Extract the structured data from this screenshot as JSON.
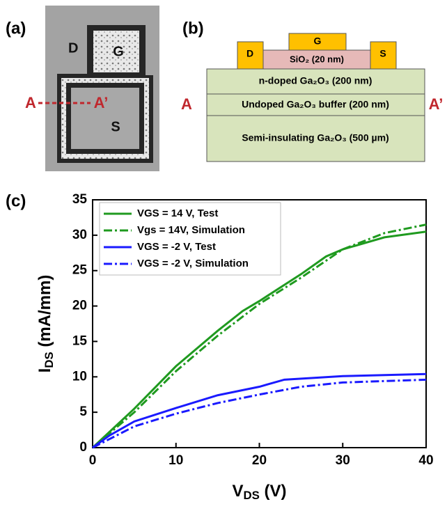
{
  "panel_a": {
    "label": "(a)",
    "drain": "D",
    "gate": "G",
    "source": "S",
    "cut_start": "A",
    "cut_end": "A’"
  },
  "panel_b": {
    "label": "(b)",
    "drain": "D",
    "gate": "G",
    "source": "S",
    "oxide": "SiO₂ (20 nm)",
    "layers": [
      "n-doped Ga₂O₃ (200 nm)",
      "Undoped Ga₂O₃ buffer (200 nm)",
      "Semi-insulating Ga₂O₃ (500 µm)"
    ],
    "cut_start": "A",
    "cut_end": "A’"
  },
  "chart_data": {
    "type": "line",
    "panel_label": "(c)",
    "xlabel": [
      "V",
      "DS",
      " (V)"
    ],
    "ylabel": [
      "I",
      "DS",
      " (mA/mm)"
    ],
    "xlim": [
      0,
      40
    ],
    "ylim": [
      0,
      35
    ],
    "xticks": [
      0,
      10,
      20,
      30,
      40
    ],
    "yticks": [
      0,
      5,
      10,
      15,
      20,
      25,
      30,
      35
    ],
    "legend": "upper left",
    "series": [
      {
        "name": "VGS = 14 V, Test",
        "color": "#1f9a1f",
        "dash": "solid",
        "x": [
          0,
          5,
          10,
          15,
          18,
          20,
          25,
          28,
          30,
          35,
          40
        ],
        "values": [
          0,
          5.5,
          11.5,
          16.5,
          19.3,
          20.7,
          24.5,
          27,
          28,
          29.7,
          30.5
        ]
      },
      {
        "name": "Vgs = 14V, Simulation",
        "color": "#1f9a1f",
        "dash": "dashdot",
        "x": [
          0,
          5,
          10,
          15,
          20,
          25,
          30,
          35,
          40
        ],
        "values": [
          0,
          5,
          10.8,
          15.8,
          20.3,
          24,
          28,
          30.3,
          31.5
        ]
      },
      {
        "name": "VGS = -2 V, Test",
        "color": "#1a1aff",
        "dash": "solid",
        "x": [
          0,
          2,
          5,
          10,
          15,
          20,
          23,
          30,
          40
        ],
        "values": [
          0,
          1.7,
          3.7,
          5.6,
          7.4,
          8.6,
          9.6,
          10.1,
          10.4
        ]
      },
      {
        "name": "VGS = -2 V, Simulation",
        "color": "#1a1aff",
        "dash": "dashdot",
        "x": [
          0,
          5,
          10,
          15,
          20,
          25,
          30,
          35,
          40
        ],
        "values": [
          0,
          3,
          4.8,
          6.3,
          7.5,
          8.6,
          9.2,
          9.4,
          9.6
        ]
      }
    ]
  }
}
